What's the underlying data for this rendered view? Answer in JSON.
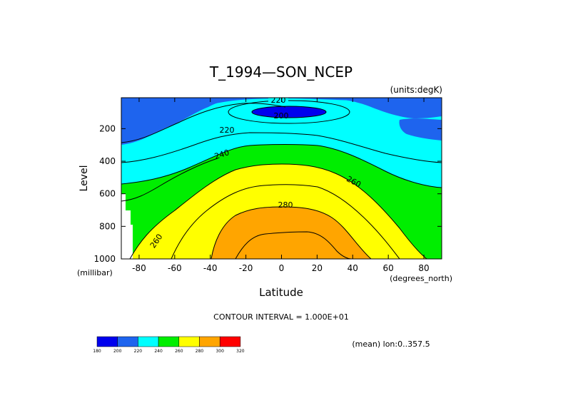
{
  "chart_data": {
    "type": "heatmap",
    "title": "T_1994—SON_NCEP",
    "units_note": "(units:degK)",
    "xlabel": "Latitude",
    "xunit": "(degrees_north)",
    "ylabel": "Level",
    "yunit": "(millibar)",
    "xlim": [
      -90,
      90
    ],
    "ylim": [
      1000,
      10
    ],
    "x_ticks": [
      "-80",
      "-60",
      "-40",
      "-20",
      "0",
      "20",
      "40",
      "60",
      "80"
    ],
    "x_tick_values": [
      -80,
      -60,
      -40,
      -20,
      0,
      20,
      40,
      60,
      80
    ],
    "y_ticks": [
      "200",
      "400",
      "600",
      "800",
      "1000"
    ],
    "y_tick_values": [
      200,
      400,
      600,
      800,
      1000
    ],
    "contour_interval_text": "CONTOUR INTERVAL = 1.000E+01",
    "contour_labels": [
      {
        "text": "220",
        "lat": -5,
        "level": 45
      },
      {
        "text": "200",
        "lat": -1,
        "level": 98
      },
      {
        "text": "220",
        "lat": -35,
        "level": 195
      },
      {
        "text": "240",
        "lat": -38,
        "level": 350
      },
      {
        "text": "260",
        "lat": 40,
        "level": 555
      },
      {
        "text": "280",
        "lat": 2,
        "level": 740
      },
      {
        "text": "260",
        "lat": -72,
        "level": 930
      }
    ],
    "mean_note": "(mean) lon:0..357.5",
    "colorbar": {
      "levels": [
        "180",
        "200",
        "220",
        "240",
        "260",
        "280",
        "300",
        "320"
      ],
      "colors": [
        "#0000ee",
        "#1e64ee",
        "#00ffff",
        "#00ee00",
        "#ffff00",
        "#ffa500",
        "#ff0000"
      ]
    }
  }
}
